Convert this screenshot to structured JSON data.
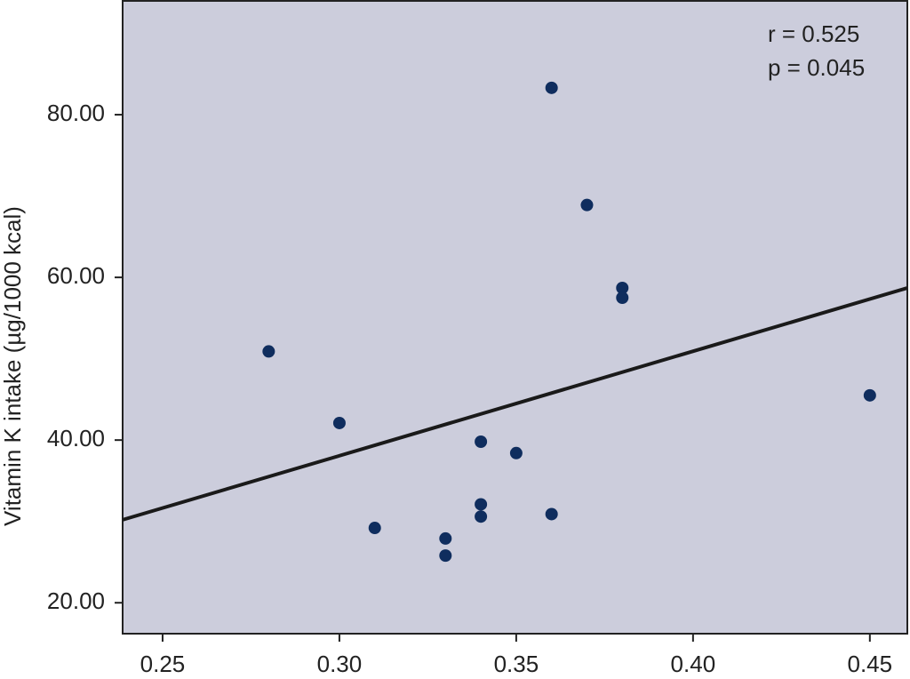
{
  "chart_data": {
    "type": "scatter",
    "y_label": "Vitamin K intake (µg/1000 kcal)",
    "annotations": [
      "r = 0.525",
      "p = 0.045"
    ],
    "x": [
      0.28,
      0.3,
      0.31,
      0.33,
      0.33,
      0.34,
      0.34,
      0.34,
      0.35,
      0.36,
      0.36,
      0.37,
      0.38,
      0.38,
      0.45
    ],
    "series": [
      {
        "color": "#0f2d5e",
        "values": [
          50.9,
          42.1,
          29.2,
          27.9,
          25.8,
          39.8,
          32.1,
          30.6,
          38.4,
          83.3,
          30.9,
          68.9,
          58.7,
          57.5,
          45.5
        ]
      }
    ],
    "fit": {
      "color": "#1a1a1a",
      "x": [
        0.2387,
        0.4606
      ],
      "y": [
        30.2,
        58.7
      ]
    },
    "xlim": [
      0.2387,
      0.4606
    ],
    "ylim": [
      16.2,
      94.1
    ],
    "xticks": [
      {
        "value": 0.25,
        "label": "0.25"
      },
      {
        "value": 0.3,
        "label": "0.30"
      },
      {
        "value": 0.35,
        "label": "0.35"
      },
      {
        "value": 0.4,
        "label": "0.40"
      },
      {
        "value": 0.45,
        "label": "0.45"
      }
    ],
    "yticks": [
      {
        "value": 20,
        "label": "20.00"
      },
      {
        "value": 40,
        "label": "40.00"
      },
      {
        "value": 60,
        "label": "60.00"
      },
      {
        "value": 80,
        "label": "80.00"
      }
    ],
    "background": "#cccddc"
  }
}
